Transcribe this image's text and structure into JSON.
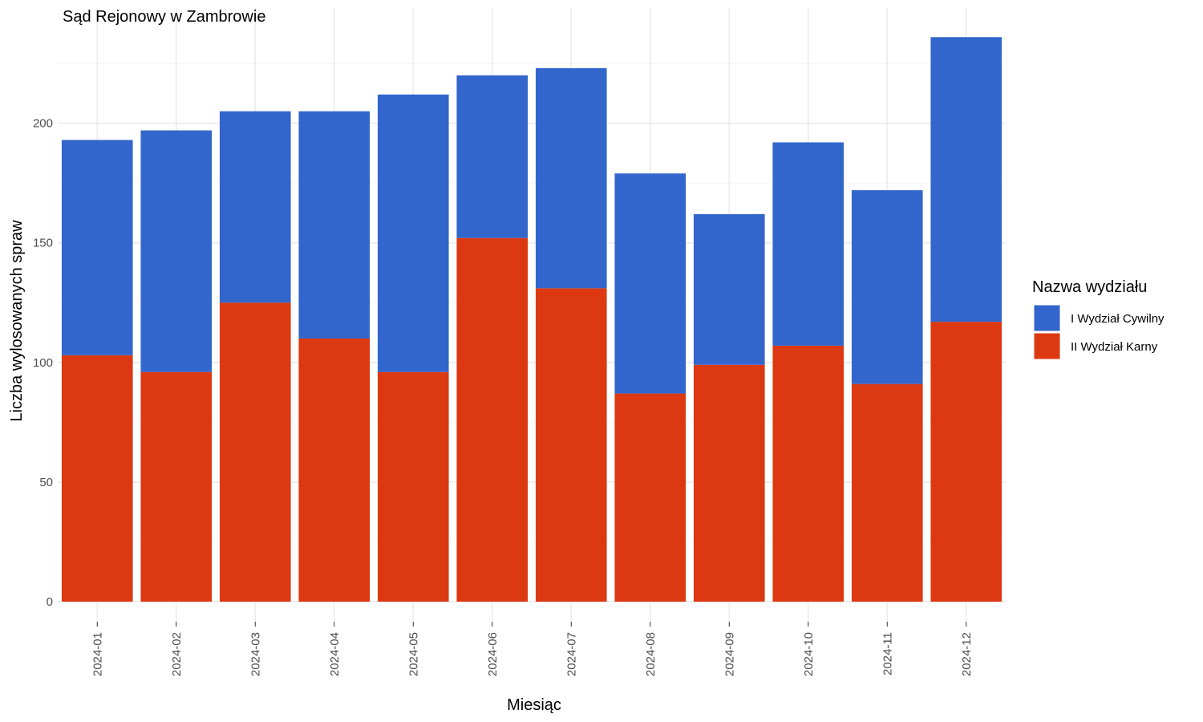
{
  "chart_data": {
    "type": "bar",
    "stacked": true,
    "title": "Sąd Rejonowy w Zambrowie",
    "xlabel": "Miesiąc",
    "ylabel": "Liczba wylosowanych spraw",
    "ylim": [
      0,
      240
    ],
    "yticks": [
      0,
      50,
      100,
      150,
      200
    ],
    "grid": true,
    "legend_position": "right",
    "legend_title": "Nazwa wydziału",
    "categories": [
      "2024-01",
      "2024-02",
      "2024-03",
      "2024-04",
      "2024-05",
      "2024-06",
      "2024-07",
      "2024-08",
      "2024-09",
      "2024-10",
      "2024-11",
      "2024-12"
    ],
    "series": [
      {
        "name": "I Wydział Cywilny",
        "color": "#3366cc",
        "values": [
          90,
          101,
          80,
          95,
          116,
          68,
          92,
          92,
          63,
          85,
          81,
          119
        ]
      },
      {
        "name": "II Wydział Karny",
        "color": "#dc3912",
        "values": [
          103,
          96,
          125,
          110,
          96,
          152,
          131,
          87,
          99,
          107,
          91,
          117
        ]
      }
    ]
  }
}
